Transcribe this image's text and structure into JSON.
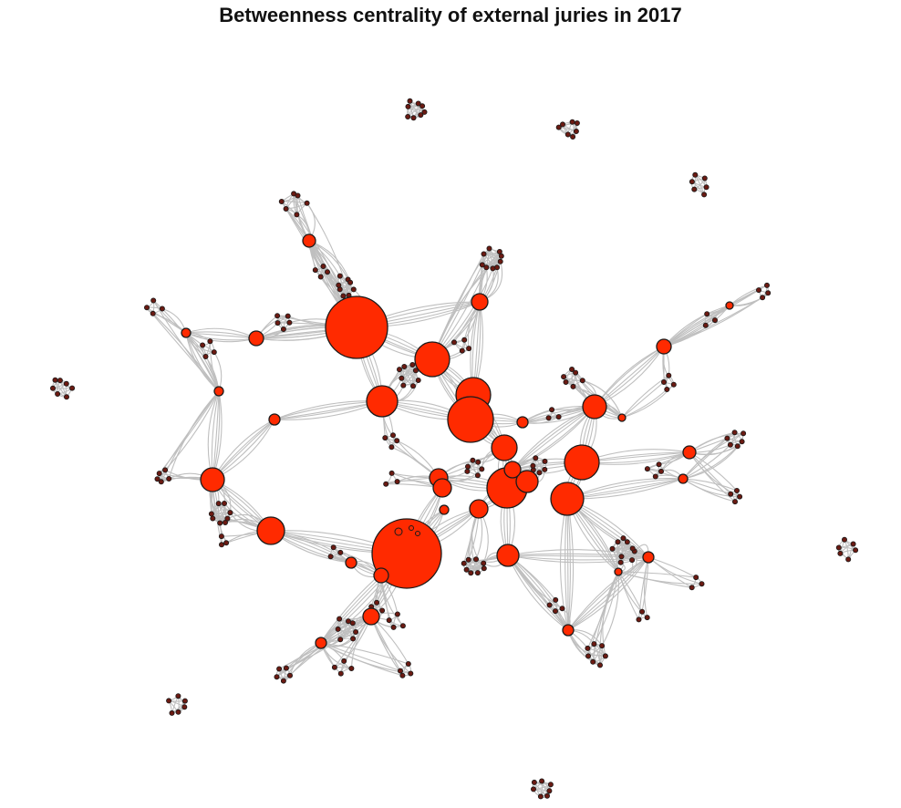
{
  "title": "Betweenness centrality of external juries in 2017",
  "colors": {
    "hub_fill": "#ff2a00",
    "node_stroke": "#1a1a1a",
    "small_node_fill": "#6b1a12",
    "edge": "#bfbfbf"
  }
}
